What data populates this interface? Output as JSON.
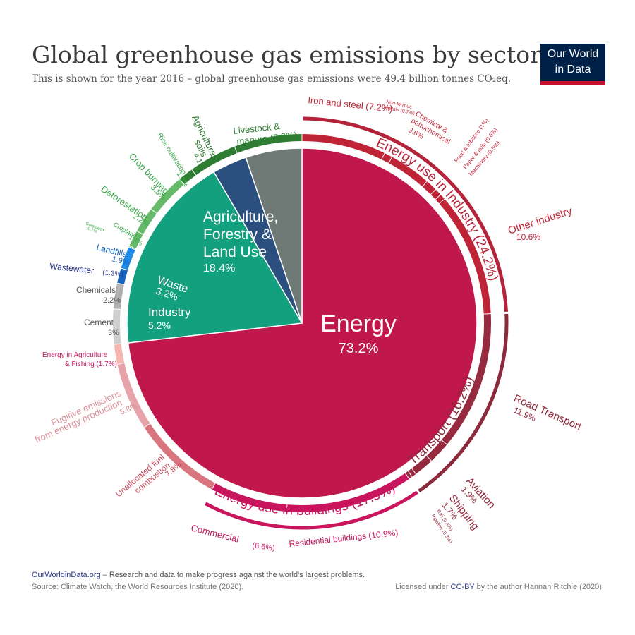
{
  "title": "Global greenhouse gas emissions by sector",
  "subtitle": "This is shown for the year 2016 – global greenhouse gas emissions were 49.4 billion tonnes CO₂eq.",
  "logo": {
    "line1": "Our World",
    "line2": "in Data",
    "bg": "#002147",
    "accent": "#c8102e"
  },
  "footer": {
    "site": "OurWorldinData.org",
    "tagline": " – Research and data to make progress against the world's largest problems.",
    "source": "Source: Climate Watch, the World Resources Institute (2020).",
    "license_pre": "Licensed under ",
    "license": "CC-BY",
    "license_post": " by the author Hannah Ritchie  (2020)."
  },
  "chart_data": {
    "type": "pie",
    "sectors": [
      {
        "name": "Energy",
        "value": 73.2,
        "label": "73.2%",
        "color": "#c0174c"
      },
      {
        "name": "Agriculture, Forestry & Land Use",
        "value": 18.4,
        "label": "18.4%",
        "color": "#13a07e"
      },
      {
        "name": "Waste",
        "value": 3.2,
        "label": "3.2%",
        "color": "#2b4f7e"
      },
      {
        "name": "Industry",
        "value": 5.2,
        "label": "5.2%",
        "color": "#6f7976"
      }
    ],
    "groups": [
      {
        "name": "Energy use in Industry",
        "value": 24.2,
        "label": "Energy use in Industry (24.2%)",
        "color": "#b5233a"
      },
      {
        "name": "Transport",
        "value": 16.2,
        "label": "Transport (16.2%)",
        "color": "#8c2a3c"
      },
      {
        "name": "Energy use in buildings",
        "value": 17.5,
        "label": "Energy use in buildings (17.5%)",
        "color": "#c8155e"
      }
    ],
    "subsectors": [
      {
        "name": "Iron and steel",
        "value": 7.2,
        "label": "Iron and steel (7.2%)",
        "color": "#bf2336"
      },
      {
        "name": "Non-ferrous metals",
        "value": 0.7,
        "label": "Non-ferrous metals (0.7%)",
        "color": "#bf2336"
      },
      {
        "name": "Chemical & petrochemical",
        "value": 3.6,
        "label": "Chemical & petrochemical 3.6%",
        "color": "#bf2336"
      },
      {
        "name": "Food & tobacco",
        "value": 1.0,
        "label": "Food & tobacco (1%)",
        "color": "#bf2336"
      },
      {
        "name": "Paper & pulp",
        "value": 0.6,
        "label": "Paper & pulp (0.6%)",
        "color": "#bf2336"
      },
      {
        "name": "Machinery",
        "value": 0.5,
        "label": "Machinery (0.5%)",
        "color": "#bf2336"
      },
      {
        "name": "Other industry",
        "value": 10.6,
        "label": "Other industry 10.6%",
        "color": "#bf2336"
      },
      {
        "name": "Road Transport",
        "value": 11.9,
        "label": "Road Transport 11.9%",
        "color": "#962a3e"
      },
      {
        "name": "Aviation",
        "value": 1.9,
        "label": "Aviation 1.9%",
        "color": "#962a3e"
      },
      {
        "name": "Shipping",
        "value": 1.7,
        "label": "Shipping 1.7%",
        "color": "#962a3e"
      },
      {
        "name": "Rail",
        "value": 0.4,
        "label": "Rail (0.4%)",
        "color": "#962a3e"
      },
      {
        "name": "Pipeline",
        "value": 0.3,
        "label": "Pipeline (0.3%)",
        "color": "#962a3e"
      },
      {
        "name": "Residential buildings",
        "value": 10.9,
        "label": "Residential buildings (10.9%)",
        "color": "#c8155e"
      },
      {
        "name": "Commercial",
        "value": 6.6,
        "label": "Commercial (6.6%)",
        "color": "#c8155e"
      },
      {
        "name": "Unallocated fuel combustion",
        "value": 7.8,
        "label": "Unallocated fuel combustion 7.8%",
        "color": "#d9757e"
      },
      {
        "name": "Fugitive emissions from energy production",
        "value": 5.8,
        "label": "Fugitive emissions from energy production 5.8%",
        "color": "#e6a3aa"
      },
      {
        "name": "Energy in Agriculture & Fishing",
        "value": 1.7,
        "label": "Energy in Agriculture & Fishing (1.7%)",
        "color": "#f4b6ad"
      },
      {
        "name": "Cement",
        "value": 3.0,
        "label": "Cement 3%",
        "color": "#cfcfcf"
      },
      {
        "name": "Chemicals",
        "value": 2.2,
        "label": "Chemicals 2.2%",
        "color": "#b0b0b0"
      },
      {
        "name": "Wastewater",
        "value": 1.3,
        "label": "Wastewater (1.3%)",
        "color": "#1565c0"
      },
      {
        "name": "Landfills",
        "value": 1.9,
        "label": "Landfills 1.9%",
        "color": "#1e88e5"
      },
      {
        "name": "Grassland",
        "value": 0.1,
        "label": "Grassland 0.1%",
        "color": "#66bb6a"
      },
      {
        "name": "Cropland",
        "value": 1.4,
        "label": "Cropland 1.4%",
        "color": "#66bb6a"
      },
      {
        "name": "Deforestation",
        "value": 2.2,
        "label": "Deforestation 2.2%",
        "color": "#66bb6a"
      },
      {
        "name": "Crop burning",
        "value": 3.5,
        "label": "Crop burning 3.5%",
        "color": "#66bb6a"
      },
      {
        "name": "Rice cultivation",
        "value": 1.3,
        "label": "Rice cultivation 1.3%",
        "color": "#2e7d32"
      },
      {
        "name": "Agricultural soils",
        "value": 4.1,
        "label": "Agricultural soils 4.1%",
        "color": "#2e7d32"
      },
      {
        "name": "Livestock & manure",
        "value": 5.8,
        "label": "Livestock & manure (5.8%)",
        "color": "#2e7d32"
      }
    ]
  }
}
